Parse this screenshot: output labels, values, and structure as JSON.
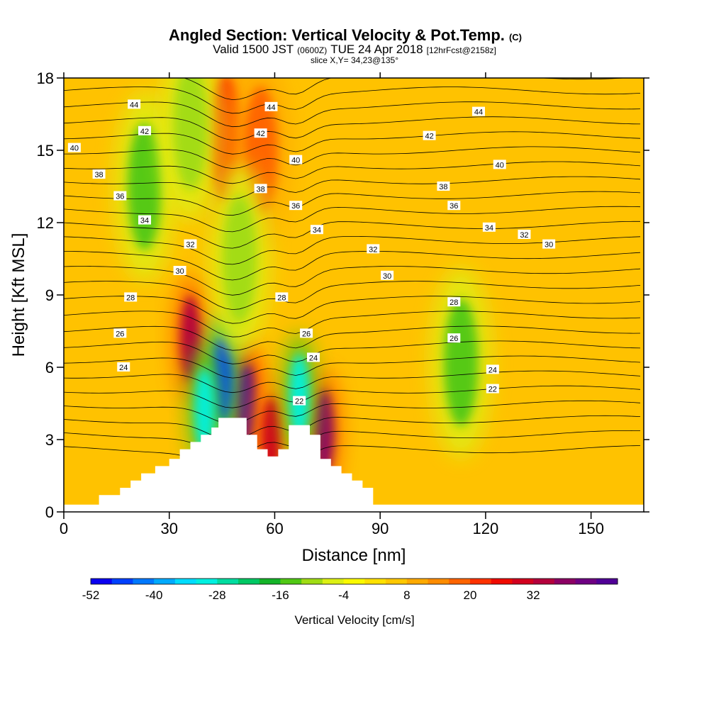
{
  "chart_data": {
    "type": "heatmap",
    "title": "Angled Section: Vertical Velocity & Pot.Temp.",
    "title_units": "(C)",
    "subtitle": {
      "valid": "Valid 1500 JST",
      "utc": "(0600Z)",
      "date": "TUE 24 Apr 2018",
      "fcst": "[12hrFcst@2158z]"
    },
    "slice_label": "slice X,Y= 34,23@135°",
    "xlabel": "Distance [nm]",
    "ylabel": "Height [Kft MSL]",
    "xlim": [
      0,
      165
    ],
    "ylim": [
      0,
      18
    ],
    "xticks": [
      0,
      30,
      60,
      90,
      120,
      150
    ],
    "yticks": [
      0,
      3,
      6,
      9,
      12,
      15,
      18
    ],
    "colorbar": {
      "label": "Vertical Velocity [cm/s]",
      "ticks": [
        -52,
        -40,
        -28,
        -16,
        -4,
        8,
        20,
        32
      ],
      "min": -52,
      "step": 4,
      "colors": [
        "#0a00f0",
        "#0040ff",
        "#0078ff",
        "#00aaff",
        "#00dcff",
        "#00f0e0",
        "#00dca0",
        "#00c864",
        "#14b428",
        "#50c814",
        "#a0dc14",
        "#dcf014",
        "#fafa00",
        "#ffe100",
        "#ffc800",
        "#ffaa00",
        "#ff8c00",
        "#ff6400",
        "#ff3200",
        "#f00a00",
        "#d2001e",
        "#b4003c",
        "#8c0064",
        "#6e0082",
        "#500096"
      ]
    },
    "theta_contours": [
      {
        "value": 22,
        "label_pos": [
          122,
          5.1
        ]
      },
      {
        "value": 22,
        "label_pos": [
          67,
          4.6
        ]
      },
      {
        "value": 24,
        "label_pos": [
          17,
          6.0
        ]
      },
      {
        "value": 24,
        "label_pos": [
          71,
          6.4
        ]
      },
      {
        "value": 24,
        "label_pos": [
          122,
          5.9
        ]
      },
      {
        "value": 26,
        "label_pos": [
          16,
          7.4
        ]
      },
      {
        "value": 26,
        "label_pos": [
          69,
          7.4
        ]
      },
      {
        "value": 26,
        "label_pos": [
          111,
          7.2
        ]
      },
      {
        "value": 28,
        "label_pos": [
          19,
          8.9
        ]
      },
      {
        "value": 28,
        "label_pos": [
          62,
          8.9
        ]
      },
      {
        "value": 28,
        "label_pos": [
          111,
          8.7
        ]
      },
      {
        "value": 30,
        "label_pos": [
          33,
          10.0
        ]
      },
      {
        "value": 30,
        "label_pos": [
          92,
          9.8
        ]
      },
      {
        "value": 30,
        "label_pos": [
          138,
          11.1
        ]
      },
      {
        "value": 32,
        "label_pos": [
          36,
          11.1
        ]
      },
      {
        "value": 32,
        "label_pos": [
          88,
          10.9
        ]
      },
      {
        "value": 32,
        "label_pos": [
          131,
          11.5
        ]
      },
      {
        "value": 34,
        "label_pos": [
          23,
          12.1
        ]
      },
      {
        "value": 34,
        "label_pos": [
          72,
          11.7
        ]
      },
      {
        "value": 34,
        "label_pos": [
          121,
          11.8
        ]
      },
      {
        "value": 36,
        "label_pos": [
          16,
          13.1
        ]
      },
      {
        "value": 36,
        "label_pos": [
          66,
          12.7
        ]
      },
      {
        "value": 36,
        "label_pos": [
          111,
          12.7
        ]
      },
      {
        "value": 38,
        "label_pos": [
          10,
          14.0
        ]
      },
      {
        "value": 38,
        "label_pos": [
          56,
          13.4
        ]
      },
      {
        "value": 38,
        "label_pos": [
          108,
          13.5
        ]
      },
      {
        "value": 40,
        "label_pos": [
          3,
          15.1
        ]
      },
      {
        "value": 40,
        "label_pos": [
          66,
          14.6
        ]
      },
      {
        "value": 40,
        "label_pos": [
          124,
          14.4
        ]
      },
      {
        "value": 42,
        "label_pos": [
          23,
          15.8
        ]
      },
      {
        "value": 42,
        "label_pos": [
          56,
          15.7
        ]
      },
      {
        "value": 42,
        "label_pos": [
          104,
          15.6
        ]
      },
      {
        "value": 44,
        "label_pos": [
          20,
          16.9
        ]
      },
      {
        "value": 44,
        "label_pos": [
          59,
          16.8
        ]
      },
      {
        "value": 44,
        "label_pos": [
          118,
          16.6
        ]
      }
    ],
    "terrain": [
      [
        0,
        0.3
      ],
      [
        10,
        0.3
      ],
      [
        10,
        0.7
      ],
      [
        16,
        0.7
      ],
      [
        16,
        1.0
      ],
      [
        19,
        1.0
      ],
      [
        19,
        1.3
      ],
      [
        22,
        1.3
      ],
      [
        22,
        1.6
      ],
      [
        26,
        1.6
      ],
      [
        26,
        1.9
      ],
      [
        30,
        1.9
      ],
      [
        30,
        2.2
      ],
      [
        33,
        2.2
      ],
      [
        33,
        2.6
      ],
      [
        36,
        2.6
      ],
      [
        36,
        2.9
      ],
      [
        39,
        2.9
      ],
      [
        39,
        3.2
      ],
      [
        42,
        3.2
      ],
      [
        42,
        3.5
      ],
      [
        44,
        3.5
      ],
      [
        44,
        3.9
      ],
      [
        52,
        3.9
      ],
      [
        52,
        3.2
      ],
      [
        55,
        3.2
      ],
      [
        55,
        2.6
      ],
      [
        58,
        2.6
      ],
      [
        58,
        2.3
      ],
      [
        61,
        2.3
      ],
      [
        61,
        2.6
      ],
      [
        64,
        2.6
      ],
      [
        64,
        3.6
      ],
      [
        70,
        3.6
      ],
      [
        70,
        3.2
      ],
      [
        73,
        3.2
      ],
      [
        73,
        2.2
      ],
      [
        76,
        2.2
      ],
      [
        76,
        1.9
      ],
      [
        79,
        1.9
      ],
      [
        79,
        1.6
      ],
      [
        82,
        1.6
      ],
      [
        82,
        1.3
      ],
      [
        85,
        1.3
      ],
      [
        85,
        1.0
      ],
      [
        88,
        1.0
      ],
      [
        88,
        0.3
      ],
      [
        165,
        0.3
      ]
    ],
    "updraft_cores": [
      {
        "x": 46,
        "y": 15.5,
        "velocity": 20
      },
      {
        "x": 36,
        "y": 7.2,
        "velocity": 32
      },
      {
        "x": 52,
        "y": 4.4,
        "velocity": 40
      },
      {
        "x": 59,
        "y": 3.0,
        "velocity": 28
      },
      {
        "x": 74,
        "y": 3.3,
        "velocity": 36
      },
      {
        "x": 56,
        "y": 15.0,
        "velocity": 16
      }
    ],
    "downdraft_cores": [
      {
        "x": 23,
        "y": 13.5,
        "velocity": -16
      },
      {
        "x": 36,
        "y": 16.0,
        "velocity": -10
      },
      {
        "x": 45,
        "y": 5.5,
        "velocity": -48
      },
      {
        "x": 40,
        "y": 4.2,
        "velocity": -32
      },
      {
        "x": 67,
        "y": 4.8,
        "velocity": -32
      },
      {
        "x": 113,
        "y": 6.2,
        "velocity": -16
      },
      {
        "x": 50,
        "y": 10.5,
        "velocity": -12
      }
    ]
  }
}
